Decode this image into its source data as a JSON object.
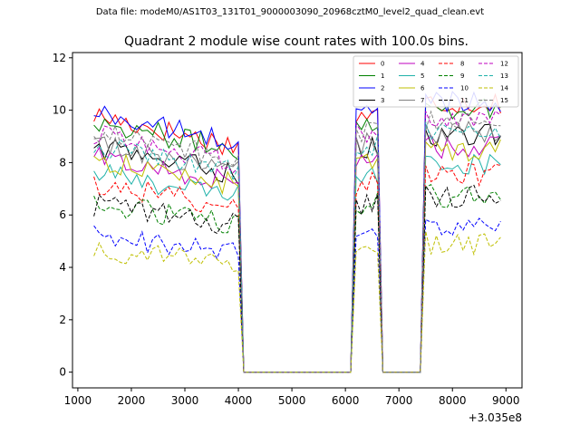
{
  "figure": {
    "supertitle": "Data file: modeM0/AS1T03_131T01_9000003090_20968cztM0_level2_quad_clean.evt"
  },
  "chart_data": {
    "type": "line",
    "title": "Quadrant 2 module wise count rates with 100.0s bins.",
    "xlabel": "",
    "ylabel": "",
    "x_offset_label": "+3.035e8",
    "xlim": [
      900,
      9300
    ],
    "ylim": [
      -0.6,
      12.2
    ],
    "x_ticks": [
      1000,
      2000,
      3000,
      4000,
      5000,
      6000,
      7000,
      8000,
      9000
    ],
    "y_ticks": [
      0,
      2,
      4,
      6,
      8,
      10,
      12
    ],
    "legend": {
      "position": "top-right",
      "columns": 4
    },
    "segments": [
      {
        "start": 1300,
        "end": 4000,
        "phase": 1
      },
      {
        "start": 4100,
        "end": 6100,
        "phase": 0
      },
      {
        "start": 6200,
        "end": 6600,
        "phase": 1
      },
      {
        "start": 6700,
        "end": 7400,
        "phase": 0
      },
      {
        "start": 7500,
        "end": 8900,
        "phase": 1
      }
    ],
    "series": [
      {
        "name": "0",
        "color": "#ff0000",
        "dashed": false,
        "level": 9.8
      },
      {
        "name": "1",
        "color": "#008000",
        "dashed": false,
        "level": 9.6
      },
      {
        "name": "2",
        "color": "#0000ff",
        "dashed": false,
        "level": 9.9
      },
      {
        "name": "3",
        "color": "#000000",
        "dashed": false,
        "level": 8.6
      },
      {
        "name": "4",
        "color": "#bf00bf",
        "dashed": false,
        "level": 8.2
      },
      {
        "name": "5",
        "color": "#20b2aa",
        "dashed": false,
        "level": 7.6
      },
      {
        "name": "6",
        "color": "#bfbf00",
        "dashed": false,
        "level": 8.1
      },
      {
        "name": "7",
        "color": "#808080",
        "dashed": false,
        "level": 8.7
      },
      {
        "name": "8",
        "color": "#ff0000",
        "dashed": true,
        "level": 7.2
      },
      {
        "name": "9",
        "color": "#008000",
        "dashed": true,
        "level": 6.4
      },
      {
        "name": "10",
        "color": "#0000ff",
        "dashed": true,
        "level": 5.2
      },
      {
        "name": "11",
        "color": "#000000",
        "dashed": true,
        "level": 6.4
      },
      {
        "name": "12",
        "color": "#bf00bf",
        "dashed": true,
        "level": 9.1
      },
      {
        "name": "13",
        "color": "#20b2aa",
        "dashed": true,
        "level": 8.7
      },
      {
        "name": "14",
        "color": "#bfbf00",
        "dashed": true,
        "level": 4.7
      },
      {
        "name": "15",
        "color": "#808080",
        "dashed": true,
        "level": 9.2
      }
    ]
  }
}
